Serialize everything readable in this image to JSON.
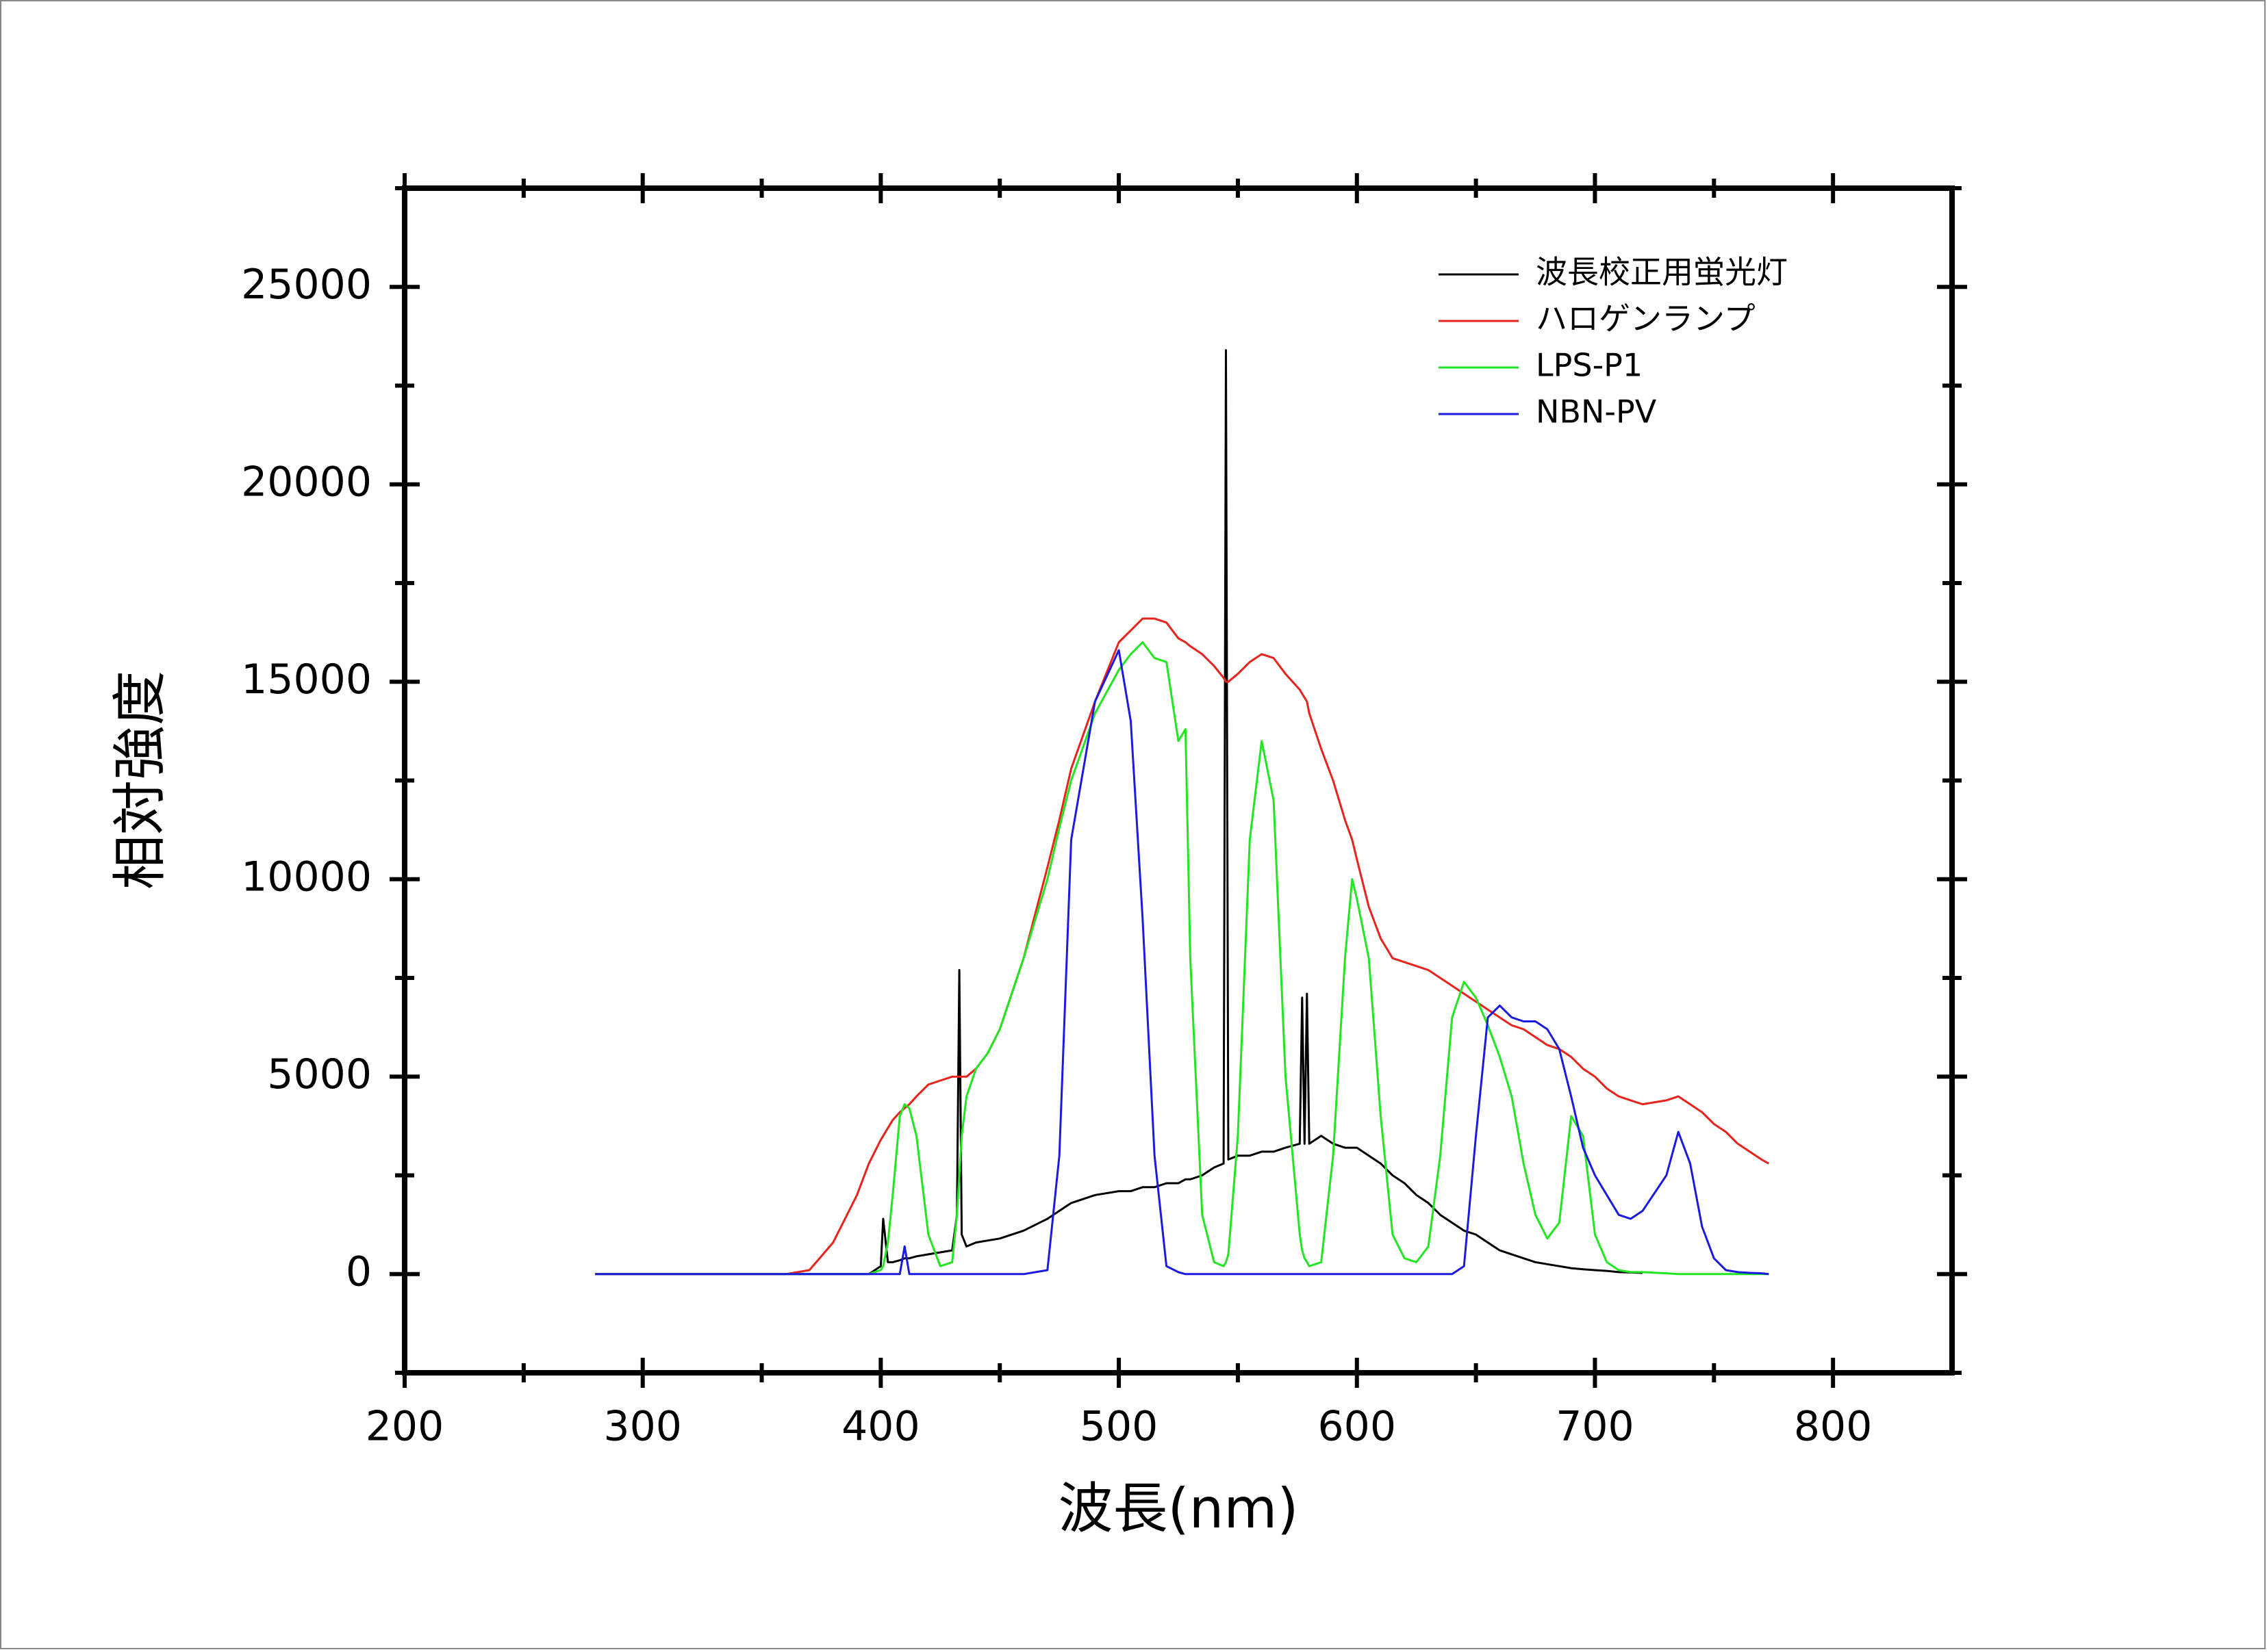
{
  "chart_data": {
    "type": "line",
    "xlabel": "波長(nm)",
    "ylabel": "相対強度",
    "xlim": [
      200,
      850
    ],
    "ylim": [
      -2500,
      27500
    ],
    "xticks": [
      200,
      300,
      400,
      500,
      600,
      700,
      800
    ],
    "yticks": [
      0,
      5000,
      10000,
      15000,
      20000,
      25000
    ],
    "minor_xticks": [
      250,
      350,
      450,
      550,
      650,
      750
    ],
    "minor_yticks": [
      -2500,
      2500,
      7500,
      12500,
      17500,
      22500,
      27500
    ],
    "grid": false,
    "legend": "upper right",
    "x": [
      280,
      300,
      320,
      340,
      360,
      370,
      380,
      390,
      395,
      400,
      401,
      403,
      405,
      408,
      410,
      412,
      415,
      420,
      425,
      430,
      432,
      433,
      434,
      436,
      440,
      445,
      450,
      460,
      470,
      475,
      480,
      490,
      500,
      505,
      510,
      515,
      520,
      525,
      528,
      530,
      535,
      540,
      544,
      545,
      546,
      550,
      555,
      560,
      565,
      570,
      576,
      577,
      578,
      579,
      580,
      585,
      590,
      595,
      598,
      600,
      605,
      610,
      615,
      620,
      625,
      630,
      635,
      640,
      645,
      650,
      655,
      660,
      665,
      670,
      675,
      680,
      685,
      690,
      695,
      700,
      705,
      710,
      715,
      720,
      730,
      735,
      740,
      745,
      750,
      755,
      760,
      765,
      770,
      773
    ],
    "series": [
      {
        "name": "波長校正用蛍光灯",
        "color": "#000000",
        "values": [
          0,
          0,
          0,
          0,
          0,
          0,
          0,
          0,
          0,
          200,
          1400,
          300,
          300,
          350,
          400,
          400,
          450,
          500,
          550,
          600,
          1500,
          7700,
          1000,
          700,
          800,
          850,
          900,
          1100,
          1400,
          1600,
          1800,
          2000,
          2100,
          2100,
          2200,
          2200,
          2300,
          2300,
          2400,
          2400,
          2500,
          2700,
          2800,
          23400,
          2900,
          3000,
          3000,
          3100,
          3100,
          3200,
          3300,
          7000,
          3300,
          7100,
          3300,
          3500,
          3300,
          3200,
          3200,
          3200,
          3000,
          2800,
          2500,
          2300,
          2000,
          1800,
          1500,
          1300,
          1100,
          1000,
          800,
          600,
          500,
          400,
          300,
          250,
          200,
          150,
          120,
          100,
          80,
          50,
          40,
          30,
          null,
          null,
          null,
          null,
          null,
          null,
          null,
          null,
          null,
          null
        ]
      },
      {
        "name": "ハロゲンランプ",
        "color": "#e8231c",
        "values": [
          0,
          0,
          0,
          0,
          0,
          100,
          800,
          2000,
          2800,
          3400,
          3500,
          3700,
          3900,
          4100,
          4200,
          4300,
          4500,
          4800,
          4900,
          5000,
          5000,
          5000,
          5000,
          5000,
          5200,
          5600,
          6200,
          8000,
          10300,
          11500,
          12800,
          14500,
          16000,
          16300,
          16600,
          16600,
          16500,
          16100,
          16000,
          15900,
          15700,
          15400,
          15100,
          15000,
          15000,
          15200,
          15500,
          15700,
          15600,
          15200,
          14800,
          14700,
          14600,
          14500,
          14200,
          13300,
          12500,
          11500,
          11000,
          10500,
          9300,
          8500,
          8000,
          7900,
          7800,
          7700,
          7500,
          7300,
          7100,
          6900,
          6700,
          6500,
          6300,
          6200,
          6000,
          5800,
          5700,
          5500,
          5200,
          5000,
          4700,
          4500,
          4400,
          4300,
          4400,
          4500,
          4300,
          4100,
          3800,
          3600,
          3300,
          3100,
          2900,
          2800
        ]
      },
      {
        "name": "LPS-P1",
        "color": "#22e622",
        "values": [
          0,
          0,
          0,
          0,
          0,
          0,
          0,
          0,
          0,
          100,
          200,
          800,
          2000,
          4000,
          4300,
          4200,
          3500,
          1000,
          200,
          300,
          1500,
          2500,
          3500,
          4500,
          5200,
          5600,
          6200,
          8000,
          10000,
          11300,
          12500,
          14200,
          15300,
          15700,
          16000,
          15600,
          15500,
          13500,
          13800,
          8000,
          1500,
          300,
          200,
          300,
          500,
          3500,
          11000,
          13500,
          12000,
          5000,
          1000,
          600,
          400,
          300,
          200,
          300,
          3000,
          8000,
          10000,
          9500,
          8000,
          4000,
          1000,
          400,
          300,
          700,
          3000,
          6500,
          7400,
          7000,
          6300,
          5500,
          4500,
          2800,
          1500,
          900,
          1300,
          4000,
          3500,
          1000,
          300,
          100,
          50,
          50,
          20,
          0,
          0,
          0,
          0,
          0,
          0,
          0,
          0,
          0
        ]
      },
      {
        "name": "NBN-PV",
        "color": "#1a1ae0",
        "values": [
          0,
          0,
          0,
          0,
          0,
          0,
          0,
          0,
          0,
          0,
          0,
          0,
          0,
          0,
          700,
          0,
          0,
          0,
          0,
          0,
          0,
          0,
          0,
          0,
          0,
          0,
          0,
          0,
          100,
          3000,
          11000,
          14500,
          15800,
          14000,
          9000,
          3000,
          200,
          50,
          0,
          0,
          0,
          0,
          0,
          0,
          0,
          0,
          0,
          0,
          0,
          0,
          0,
          0,
          0,
          0,
          0,
          0,
          0,
          0,
          0,
          0,
          0,
          0,
          0,
          0,
          0,
          0,
          0,
          0,
          200,
          3500,
          6500,
          6800,
          6500,
          6400,
          6400,
          6200,
          5700,
          4500,
          3200,
          2500,
          2000,
          1500,
          1400,
          1600,
          2500,
          3600,
          2800,
          1200,
          400,
          100,
          50,
          30,
          20,
          0
        ]
      }
    ]
  }
}
